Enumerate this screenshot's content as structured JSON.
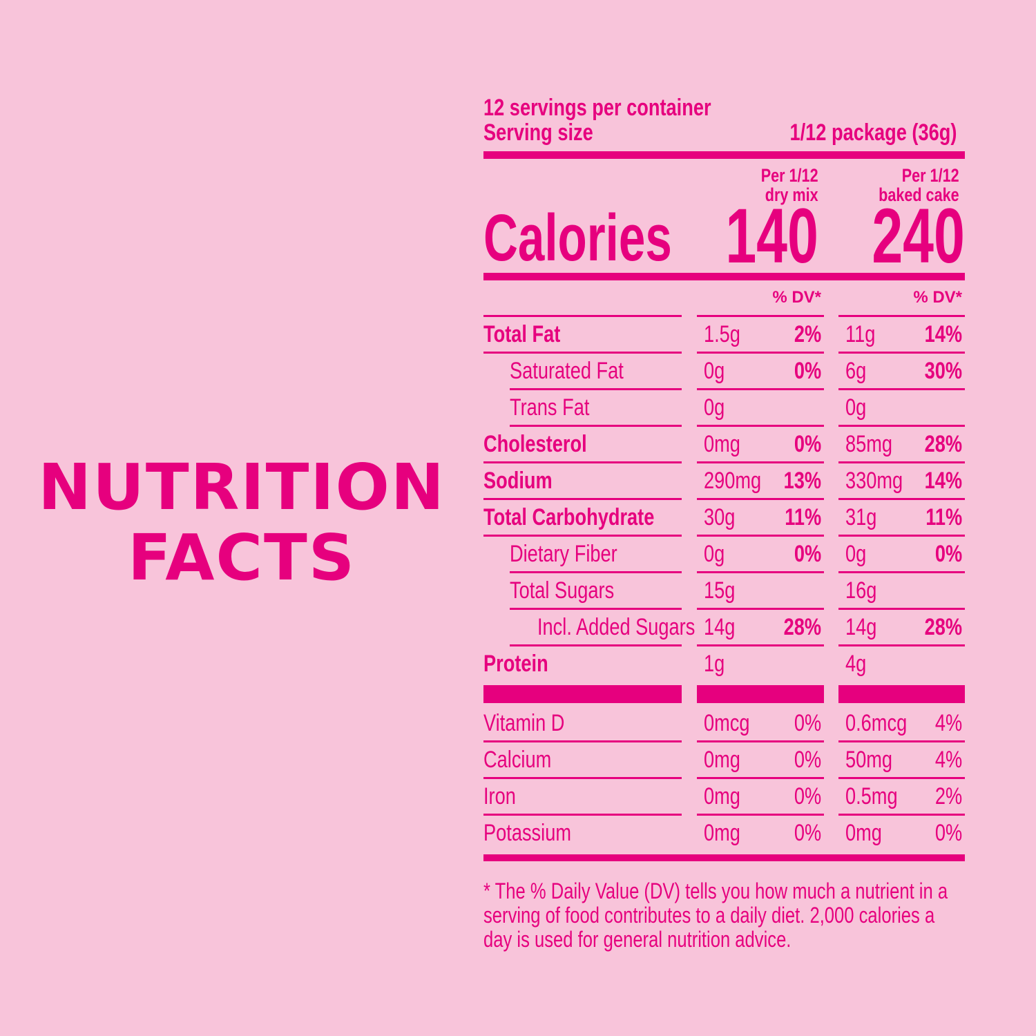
{
  "big_title": {
    "line1": "NUTRITION",
    "line2": "FACTS"
  },
  "panel": {
    "servings_per_container": "12 servings per container",
    "serving_size_label": "Serving size",
    "serving_size_value": "1/12 package (36g)",
    "col1_head": [
      "Per 1/12",
      "dry mix"
    ],
    "col2_head": [
      "Per 1/12",
      "baked cake"
    ],
    "calories_label": "Calories",
    "calories_col1": "140",
    "calories_col2": "240",
    "dv_head": "% DV*",
    "rows": [
      {
        "name": "Total Fat",
        "a1": "1.5g",
        "d1": "2%",
        "a2": "11g",
        "d2": "14%"
      },
      {
        "name": "Saturated Fat",
        "a1": "0g",
        "d1": "0%",
        "a2": "6g",
        "d2": "30%"
      },
      {
        "name": "Trans Fat",
        "a1": "0g",
        "d1": "",
        "a2": "0g",
        "d2": ""
      },
      {
        "name": "Cholesterol",
        "a1": "0mg",
        "d1": "0%",
        "a2": "85mg",
        "d2": "28%"
      },
      {
        "name": "Sodium",
        "a1": "290mg",
        "d1": "13%",
        "a2": "330mg",
        "d2": "14%"
      },
      {
        "name": "Total Carbohydrate",
        "a1": "30g",
        "d1": "11%",
        "a2": "31g",
        "d2": "11%"
      },
      {
        "name": "Dietary Fiber",
        "a1": "0g",
        "d1": "0%",
        "a2": "0g",
        "d2": "0%"
      },
      {
        "name": "Total Sugars",
        "a1": "15g",
        "d1": "",
        "a2": "16g",
        "d2": ""
      },
      {
        "name": "Incl. Added Sugars",
        "a1": "14g",
        "d1": "28%",
        "a2": "14g",
        "d2": "28%"
      },
      {
        "name": "Protein",
        "a1": "1g",
        "d1": "",
        "a2": "4g",
        "d2": ""
      }
    ],
    "vitamins": [
      {
        "name": "Vitamin D",
        "a1": "0mcg",
        "d1": "0%",
        "a2": "0.6mcg",
        "d2": "4%"
      },
      {
        "name": "Calcium",
        "a1": "0mg",
        "d1": "0%",
        "a2": "50mg",
        "d2": "4%"
      },
      {
        "name": "Iron",
        "a1": "0mg",
        "d1": "0%",
        "a2": "0.5mg",
        "d2": "2%"
      },
      {
        "name": "Potassium",
        "a1": "0mg",
        "d1": "0%",
        "a2": "0mg",
        "d2": "0%"
      }
    ],
    "footnote": "* The % Daily Value (DV) tells you how much a nutrient in a serving of food contributes to a daily diet. 2,000 calories a day is used for general nutrition advice."
  }
}
